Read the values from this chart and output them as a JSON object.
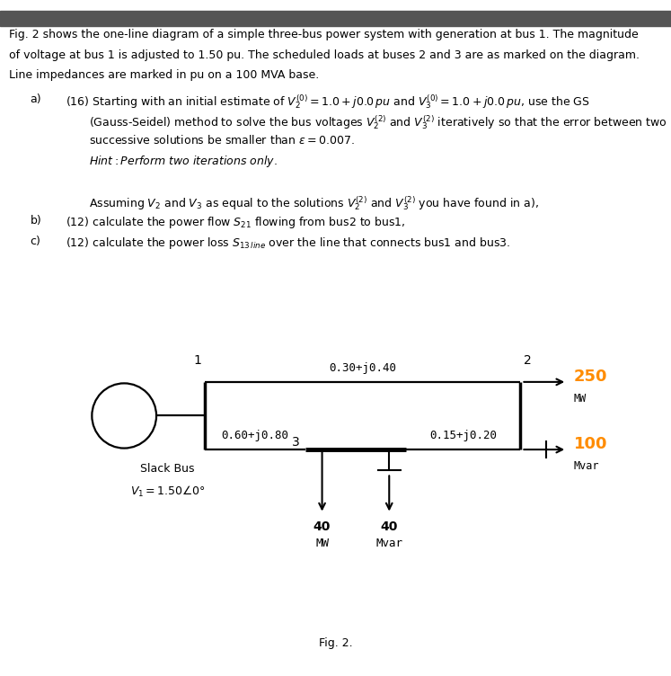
{
  "bg_color": "#ffffff",
  "header_bar_color": "#555555",
  "text_color": "#000000",
  "orange_color": "#ff8c00",
  "fig_width": 7.47,
  "fig_height": 7.52,
  "text_block": [
    "Fig. 2 shows the one-line diagram of a simple three-bus power system with generation at bus 1. The magnitude",
    "of voltage at bus 1 is adjusted to 1.50 pu. The scheduled loads at buses 2 and 3 are as marked on the diagram.",
    "Line impedances are marked in pu on a 100 MVA base."
  ],
  "line12_label": "0.30+j0.40",
  "line13left_label": "0.60+j0.80",
  "line13right_label": "0.15+j0.20",
  "load2_mw": "250",
  "load2_mvar_val": "100",
  "load2_mw_label": "MW",
  "load2_mvar_label": "Mvar",
  "load3_mw": "40",
  "load3_mvar": "40",
  "load3_mw_label": "MW",
  "load3_mvar_label": "Mvar",
  "slack_label1": "Slack Bus",
  "slack_label2": "$V_1 = 1.50 \\angle 0°$",
  "bus1_label": "1",
  "bus2_label": "2",
  "bus3_label": "3",
  "fig_label": "Fig. 2."
}
